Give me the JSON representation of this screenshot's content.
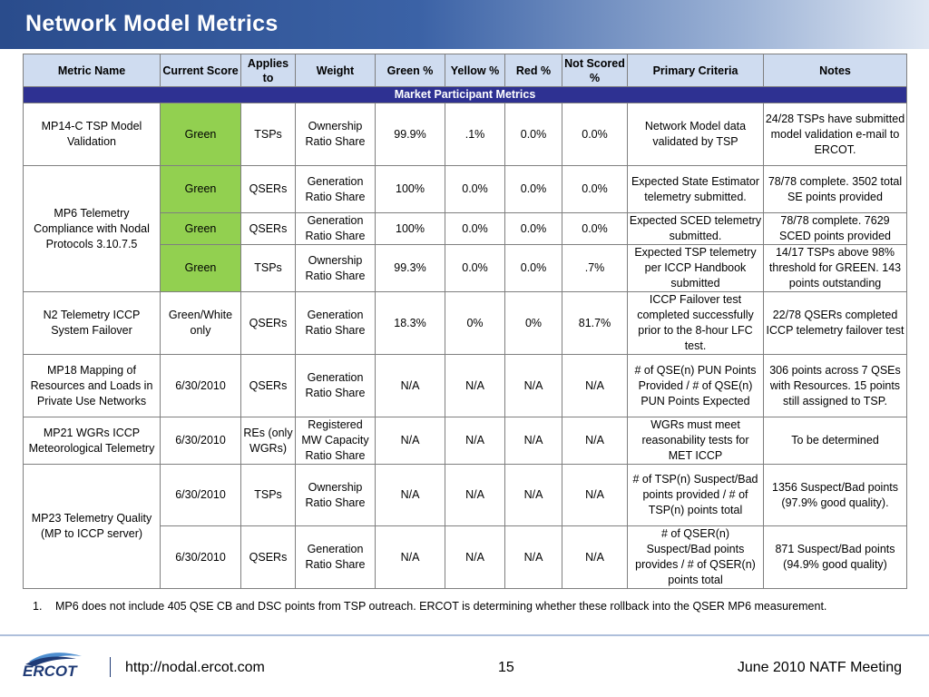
{
  "title": "Network Model Metrics",
  "columns": [
    "Metric Name",
    "Current Score",
    "Applies to",
    "Weight",
    "Green %",
    "Yellow %",
    "Red %",
    "Not Scored %",
    "Primary Criteria",
    "Notes"
  ],
  "section": "Market Participant Metrics",
  "rows": [
    {
      "metric": "MP14-C TSP Model Validation",
      "score": "Green",
      "applies": "TSPs",
      "weight": "Ownership Ratio Share",
      "green": "99.9%",
      "yellow": ".1%",
      "red": "0.0%",
      "not_scored": "0.0%",
      "criteria": "Network Model data validated by TSP",
      "notes": "24/28 TSPs have submitted model validation e-mail to ERCOT."
    },
    {
      "metric": "MP6 Telemetry Compliance with Nodal Protocols 3.10.7.5",
      "score": "Green",
      "applies": "QSERs",
      "weight": "Generation Ratio Share",
      "green": "100%",
      "yellow": "0.0%",
      "red": "0.0%",
      "not_scored": "0.0%",
      "criteria": "Expected State Estimator telemetry submitted.",
      "notes": "78/78 complete.  3502 total SE points provided"
    },
    {
      "score": "Green",
      "applies": "QSERs",
      "weight": "Generation Ratio Share",
      "green": "100%",
      "yellow": "0.0%",
      "red": "0.0%",
      "not_scored": "0.0%",
      "criteria": "Expected SCED telemetry submitted.",
      "notes": "78/78 complete.  7629 SCED points provided"
    },
    {
      "score": "Green",
      "applies": "TSPs",
      "weight": "Ownership Ratio Share",
      "green": "99.3%",
      "yellow": "0.0%",
      "red": "0.0%",
      "not_scored": ".7%",
      "criteria": "Expected TSP telemetry per ICCP Handbook submitted",
      "notes": "14/17 TSPs above 98% threshold for GREEN. 143 points outstanding"
    },
    {
      "metric": "N2 Telemetry ICCP System Failover",
      "score": "Green/White only",
      "applies": "QSERs",
      "weight": "Generation Ratio Share",
      "green": "18.3%",
      "yellow": "0%",
      "red": "0%",
      "not_scored": "81.7%",
      "criteria": "ICCP Failover test completed successfully prior to the 8-hour LFC  test.",
      "notes": "22/78 QSERs completed ICCP telemetry failover test"
    },
    {
      "metric": "MP18 Mapping of Resources and Loads in Private Use Networks",
      "score": "6/30/2010",
      "applies": "QSERs",
      "weight": "Generation Ratio Share",
      "green": "N/A",
      "yellow": "N/A",
      "red": "N/A",
      "not_scored": "N/A",
      "criteria": "# of QSE(n) PUN Points Provided / # of QSE(n) PUN Points Expected",
      "notes": "306 points across 7 QSEs with Resources. 15 points still assigned to TSP."
    },
    {
      "metric": "MP21 WGRs ICCP Meteorological Telemetry",
      "score": "6/30/2010",
      "applies": "REs (only WGRs)",
      "weight": "Registered MW Capacity Ratio Share",
      "green": "N/A",
      "yellow": "N/A",
      "red": "N/A",
      "not_scored": "N/A",
      "criteria": "WGRs must meet reasonability tests for MET ICCP",
      "notes": "To be determined"
    },
    {
      "metric": "MP23 Telemetry Quality (MP to ICCP server)",
      "score": "6/30/2010",
      "applies": "TSPs",
      "weight": "Ownership Ratio Share",
      "green": "N/A",
      "yellow": "N/A",
      "red": "N/A",
      "not_scored": "N/A",
      "criteria": "# of TSP(n) Suspect/Bad points provided / # of TSP(n) points total",
      "notes": "1356 Suspect/Bad points (97.9% good quality)."
    },
    {
      "score": "6/30/2010",
      "applies": "QSERs",
      "weight": "Generation Ratio Share",
      "green": "N/A",
      "yellow": "N/A",
      "red": "N/A",
      "not_scored": "N/A",
      "criteria": "# of QSER(n) Suspect/Bad points provides / # of QSER(n) points total",
      "notes": "871 Suspect/Bad points (94.9% good quality)"
    }
  ],
  "colors": {
    "green_cell": "#92d050",
    "section_bar": "#2e3192",
    "header_fill": "#cfdcf0"
  },
  "footnote": {
    "number": "1.",
    "text": "MP6 does not include 405 QSE CB and DSC points from TSP outreach.   ERCOT is determining whether these rollback into the QSER MP6 measurement."
  },
  "footer": {
    "logo_text": "ERCOT",
    "url": "http://nodal.ercot.com",
    "page": "15",
    "meeting": "June 2010 NATF Meeting"
  }
}
